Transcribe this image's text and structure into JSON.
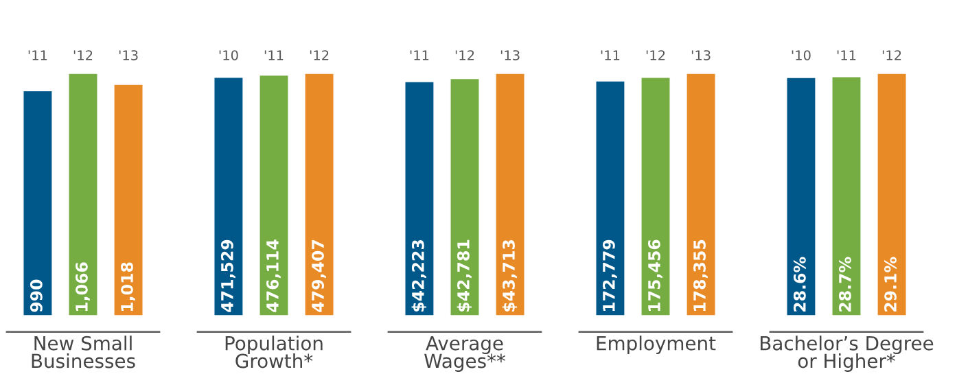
{
  "chart_data": [
    {
      "type": "bar",
      "xlabel": "New Small\nBusinesses",
      "categories": [
        "'11",
        "'12",
        "'13"
      ],
      "values": [
        990,
        1066,
        1018
      ],
      "value_labels": [
        "990",
        "1,066",
        "1,018"
      ],
      "colors": [
        "#00588a",
        "#76ad43",
        "#e88a26"
      ],
      "tick_labels": "x"
    },
    {
      "type": "bar",
      "xlabel": "Population\nGrowth*",
      "categories": [
        "'10",
        "'11",
        "'12"
      ],
      "values": [
        471529,
        476114,
        479407
      ],
      "value_labels": [
        "471,529",
        "476,114",
        "479,407"
      ],
      "colors": [
        "#00588a",
        "#76ad43",
        "#e88a26"
      ],
      "tick_labels": "x"
    },
    {
      "type": "bar",
      "xlabel": "Average\nWages**",
      "categories": [
        "'11",
        "'12",
        "'13"
      ],
      "values": [
        42223,
        42781,
        43713
      ],
      "value_labels": [
        "$42,223",
        "$42,781",
        "$43,713"
      ],
      "colors": [
        "#00588a",
        "#76ad43",
        "#e88a26"
      ],
      "tick_labels": "x"
    },
    {
      "type": "bar",
      "xlabel": "Employment",
      "categories": [
        "'11",
        "'12",
        "'13"
      ],
      "values": [
        172779,
        175456,
        178355
      ],
      "value_labels": [
        "172,779",
        "175,456",
        "178,355"
      ],
      "colors": [
        "#00588a",
        "#76ad43",
        "#e88a26"
      ],
      "tick_labels": "x"
    },
    {
      "type": "bar",
      "xlabel": "Bachelor’s Degree\nor Higher*",
      "categories": [
        "'10",
        "'11",
        "'12"
      ],
      "values": [
        28.6,
        28.7,
        29.1
      ],
      "value_labels": [
        "28.6%",
        "28.7%",
        "29.1%"
      ],
      "colors": [
        "#00588a",
        "#76ad43",
        "#e88a26"
      ],
      "tick_labels": "x"
    }
  ]
}
